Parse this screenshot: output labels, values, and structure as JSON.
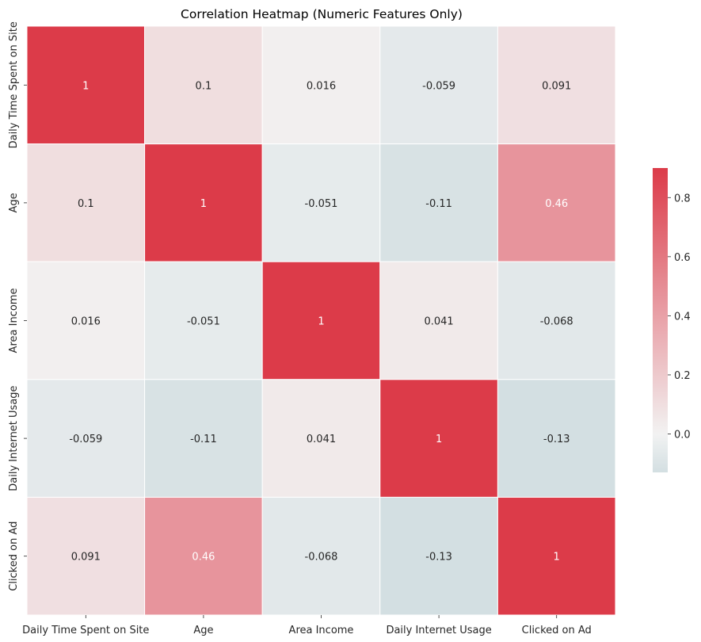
{
  "chart_data": {
    "type": "heatmap",
    "title": "Correlation Heatmap (Numeric Features Only)",
    "xlabel": "",
    "ylabel": "",
    "x_categories": [
      "Daily Time Spent on Site",
      "Age",
      "Area Income",
      "Daily Internet Usage",
      "Clicked on Ad"
    ],
    "y_categories": [
      "Daily Time Spent on Site",
      "Age",
      "Area Income",
      "Daily Internet Usage",
      "Clicked on Ad"
    ],
    "values": [
      [
        1,
        0.1,
        0.016,
        -0.059,
        0.091
      ],
      [
        0.1,
        1,
        -0.051,
        -0.11,
        0.46
      ],
      [
        0.016,
        -0.051,
        1,
        0.041,
        -0.068
      ],
      [
        -0.059,
        -0.11,
        0.041,
        1,
        -0.13
      ],
      [
        0.091,
        0.46,
        -0.068,
        -0.13,
        1
      ]
    ],
    "value_labels": [
      [
        "1",
        "0.1",
        "0.016",
        "-0.059",
        "0.091"
      ],
      [
        "0.1",
        "1",
        "-0.051",
        "-0.11",
        "0.46"
      ],
      [
        "0.016",
        "-0.051",
        "1",
        "0.041",
        "-0.068"
      ],
      [
        "-0.059",
        "-0.11",
        "0.041",
        "1",
        "-0.13"
      ],
      [
        "0.091",
        "0.46",
        "-0.068",
        "-0.13",
        "1"
      ]
    ],
    "colorbar": {
      "range": [
        -0.13,
        0.9
      ],
      "ticks": [
        0.0,
        0.2,
        0.4,
        0.6,
        0.8
      ],
      "tick_labels": [
        "0.0",
        "0.2",
        "0.4",
        "0.6",
        "0.8"
      ]
    },
    "colors": {
      "low": "#d3dfe2",
      "mid": "#f2f2f2",
      "high": "#dc3b49",
      "cell_border": "#ffffff",
      "annotation_dark": "#262626",
      "annotation_light": "#ffffff"
    },
    "grid": false,
    "legend": "colorbar-right"
  }
}
